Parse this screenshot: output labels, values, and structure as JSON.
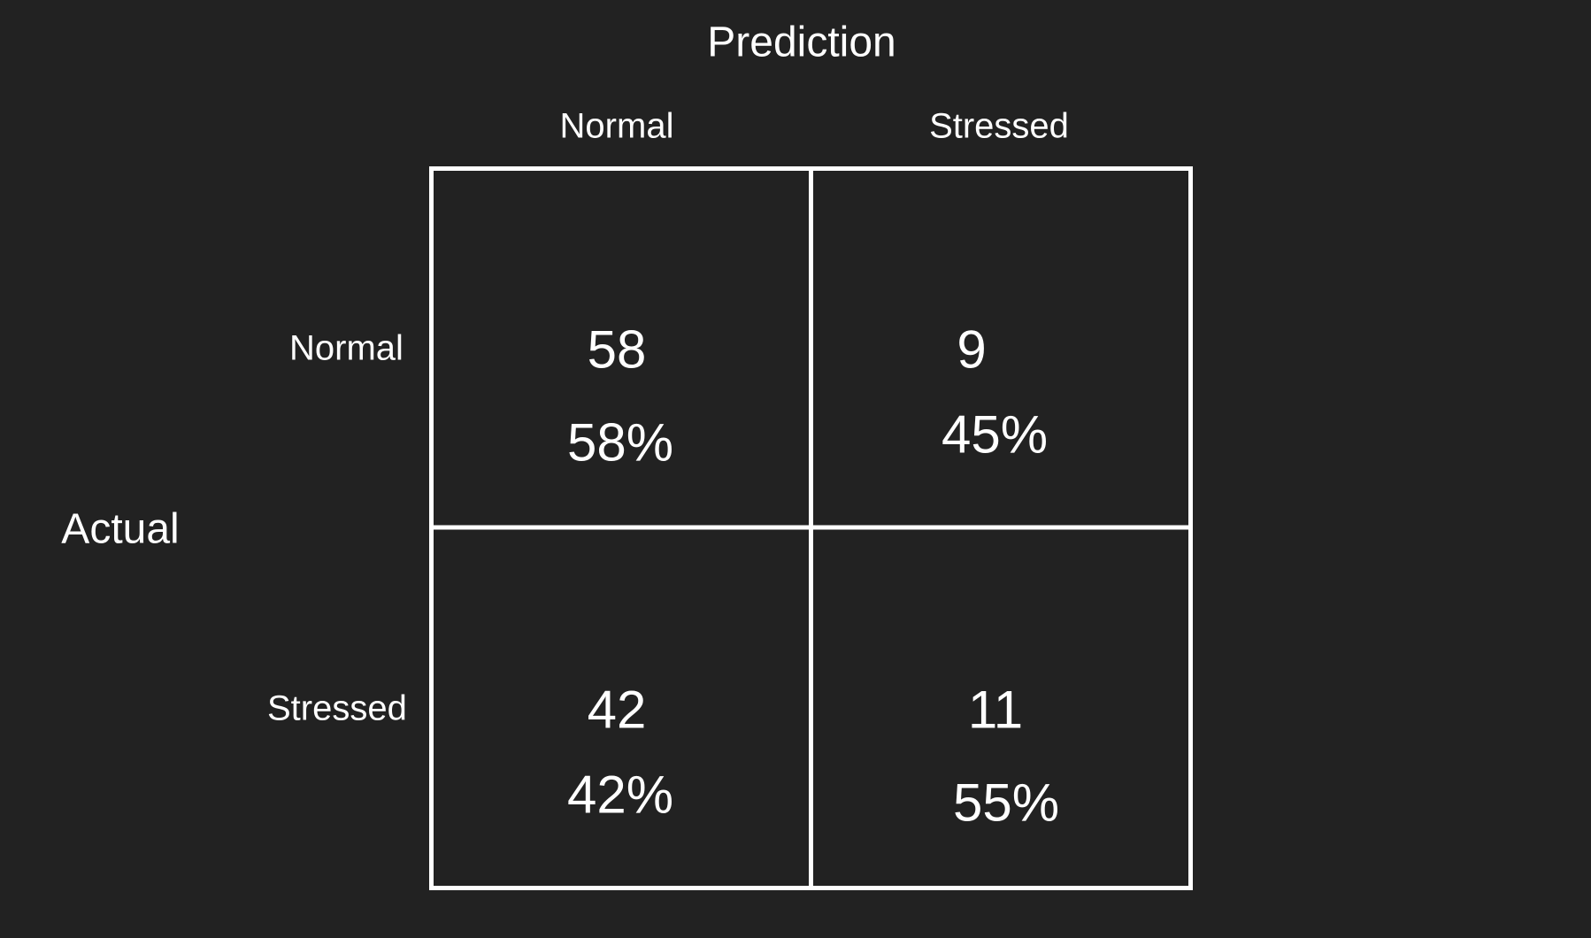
{
  "titles": {
    "prediction": "Prediction",
    "actual": "Actual"
  },
  "columns": [
    "Normal",
    "Stressed"
  ],
  "rows": [
    "Normal",
    "Stressed"
  ],
  "cells": [
    [
      {
        "count": "58",
        "percent": "58%"
      },
      {
        "count": "9",
        "percent": "45%"
      }
    ],
    [
      {
        "count": "42",
        "percent": "42%"
      },
      {
        "count": "11",
        "percent": "55%"
      }
    ]
  ],
  "colors": {
    "background": "#222222",
    "foreground": "#ffffff"
  }
}
